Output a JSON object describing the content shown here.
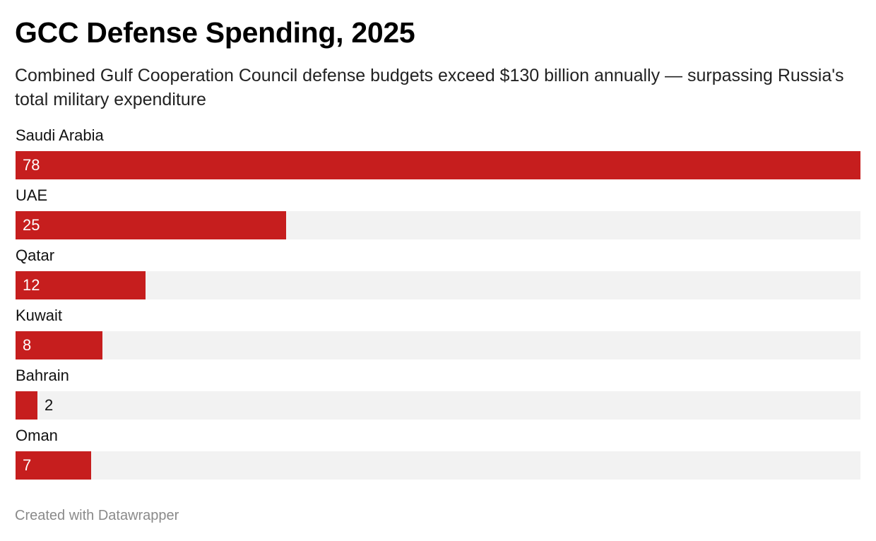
{
  "chart_data": {
    "type": "bar",
    "orientation": "horizontal",
    "title": "GCC Defense Spending, 2025",
    "subtitle": "Combined Gulf Cooperation Council defense budgets exceed $130 billion annually — surpassing Russia's total military expenditure",
    "categories": [
      "Saudi Arabia",
      "UAE",
      "Qatar",
      "Kuwait",
      "Bahrain",
      "Oman"
    ],
    "values": [
      78,
      25,
      12,
      8,
      2,
      7
    ],
    "value_labels": [
      "78",
      "25",
      "12",
      "8",
      "2",
      "7"
    ],
    "xlim": [
      0,
      78
    ],
    "xlabel": "",
    "ylabel": "",
    "grid": false,
    "bar_color": "#c61e1e",
    "track_color": "#f2f2f2",
    "credit": "Created with Datawrapper"
  }
}
